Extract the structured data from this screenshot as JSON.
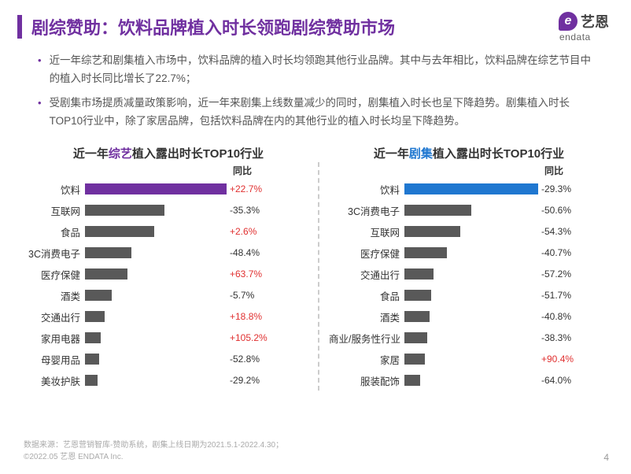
{
  "header": {
    "title": "剧综赞助：饮料品牌植入时长领跑剧综赞助市场",
    "accent_color": "#7030a0",
    "logo_cn": "艺恩",
    "logo_en": "endata",
    "logo_mark": "e"
  },
  "bullets": [
    "近一年综艺和剧集植入市场中，饮料品牌的植入时长均领跑其他行业品牌。其中与去年相比，饮料品牌在综艺节目中的植入时长同比增长了22.7%；",
    "受剧集市场提质减量政策影响，近一年来剧集上线数量减少的同时，剧集植入时长也呈下降趋势。剧集植入时长TOP10行业中，除了家居品牌，包括饮料品牌在内的其他行业的植入时长均呈下降趋势。"
  ],
  "left_chart": {
    "title_pre": "近一年",
    "title_hl": "综艺",
    "title_post": "植入露出时长TOP10行业",
    "hl_color": "#7030a0",
    "yoy_header": "同比",
    "label_width": 72,
    "track_width": 180,
    "bar_color_default": "#595959",
    "bar_color_highlight": "#7030a0",
    "max_value": 100,
    "rows": [
      {
        "label": "饮料",
        "value": 100,
        "yoy": "+22.7%",
        "pos": true,
        "highlight": true
      },
      {
        "label": "互联网",
        "value": 56,
        "yoy": "-35.3%",
        "pos": false,
        "highlight": false
      },
      {
        "label": "食品",
        "value": 49,
        "yoy": "+2.6%",
        "pos": true,
        "highlight": false
      },
      {
        "label": "3C消费电子",
        "value": 33,
        "yoy": "-48.4%",
        "pos": false,
        "highlight": false
      },
      {
        "label": "医疗保健",
        "value": 30,
        "yoy": "+63.7%",
        "pos": true,
        "highlight": false
      },
      {
        "label": "酒类",
        "value": 19,
        "yoy": "-5.7%",
        "pos": false,
        "highlight": false
      },
      {
        "label": "交通出行",
        "value": 14,
        "yoy": "+18.8%",
        "pos": true,
        "highlight": false
      },
      {
        "label": "家用电器",
        "value": 11,
        "yoy": "+105.2%",
        "pos": true,
        "highlight": false
      },
      {
        "label": "母婴用品",
        "value": 10,
        "yoy": "-52.8%",
        "pos": false,
        "highlight": false
      },
      {
        "label": "美妆护肤",
        "value": 9,
        "yoy": "-29.2%",
        "pos": false,
        "highlight": false
      }
    ]
  },
  "right_chart": {
    "title_pre": "近一年",
    "title_hl": "剧集",
    "title_post": "植入露出时长TOP10行业",
    "hl_color": "#1f77d0",
    "yoy_header": "同比",
    "label_width": 96,
    "track_width": 170,
    "bar_color_default": "#595959",
    "bar_color_highlight": "#1f77d0",
    "max_value": 100,
    "rows": [
      {
        "label": "饮料",
        "value": 100,
        "yoy": "-29.3%",
        "pos": false,
        "highlight": true
      },
      {
        "label": "3C消费电子",
        "value": 50,
        "yoy": "-50.6%",
        "pos": false,
        "highlight": false
      },
      {
        "label": "互联网",
        "value": 42,
        "yoy": "-54.3%",
        "pos": false,
        "highlight": false
      },
      {
        "label": "医疗保健",
        "value": 32,
        "yoy": "-40.7%",
        "pos": false,
        "highlight": false
      },
      {
        "label": "交通出行",
        "value": 22,
        "yoy": "-57.2%",
        "pos": false,
        "highlight": false
      },
      {
        "label": "食品",
        "value": 20,
        "yoy": "-51.7%",
        "pos": false,
        "highlight": false
      },
      {
        "label": "酒类",
        "value": 19,
        "yoy": "-40.8%",
        "pos": false,
        "highlight": false
      },
      {
        "label": "商业/服务性行业",
        "value": 17,
        "yoy": "-38.3%",
        "pos": false,
        "highlight": false
      },
      {
        "label": "家居",
        "value": 15,
        "yoy": "+90.4%",
        "pos": true,
        "highlight": false
      },
      {
        "label": "服装配饰",
        "value": 12,
        "yoy": "-64.0%",
        "pos": false,
        "highlight": false
      }
    ]
  },
  "footer": {
    "line1": "数据来源：艺恩营销智库-赞助系统，剧集上线日期为2021.5.1-2022.4.30；",
    "line2": "©2022.05 艺恩 ENDATA Inc."
  },
  "page_number": "4"
}
